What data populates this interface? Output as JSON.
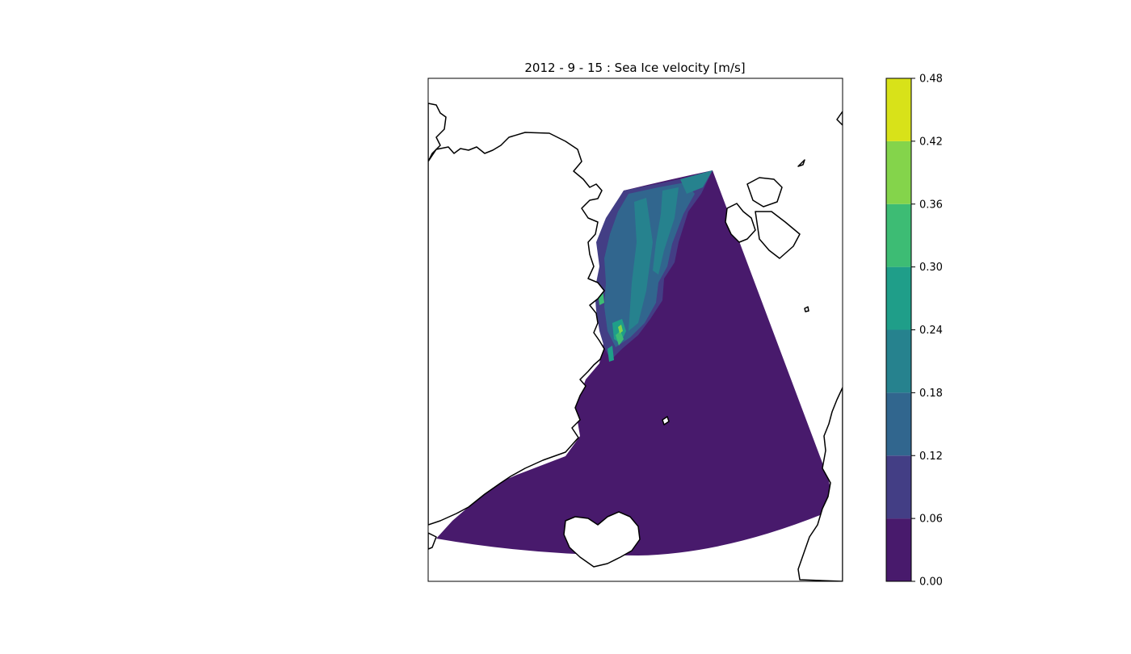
{
  "title": "2012 - 9 - 15 : Sea Ice velocity [m/s]",
  "colorbar": {
    "levels": [
      0.0,
      0.06,
      0.12,
      0.18,
      0.24,
      0.3,
      0.36,
      0.42,
      0.48
    ],
    "tick_labels": [
      "0.00",
      "0.06",
      "0.12",
      "0.18",
      "0.24",
      "0.30",
      "0.36",
      "0.42",
      "0.48"
    ],
    "colors": [
      "#481a6c",
      "#433e85",
      "#31668e",
      "#26828e",
      "#1f9e89",
      "#3dbc74",
      "#84d44b",
      "#d8e219"
    ]
  },
  "map": {
    "ocean_fill_color": "#481a6c",
    "coastline_color": "#000000",
    "land_color": "#ffffff",
    "ice_colors": [
      "#433e85",
      "#31668e",
      "#26828e",
      "#1f9e89",
      "#3dbc74",
      "#84d44b"
    ]
  }
}
